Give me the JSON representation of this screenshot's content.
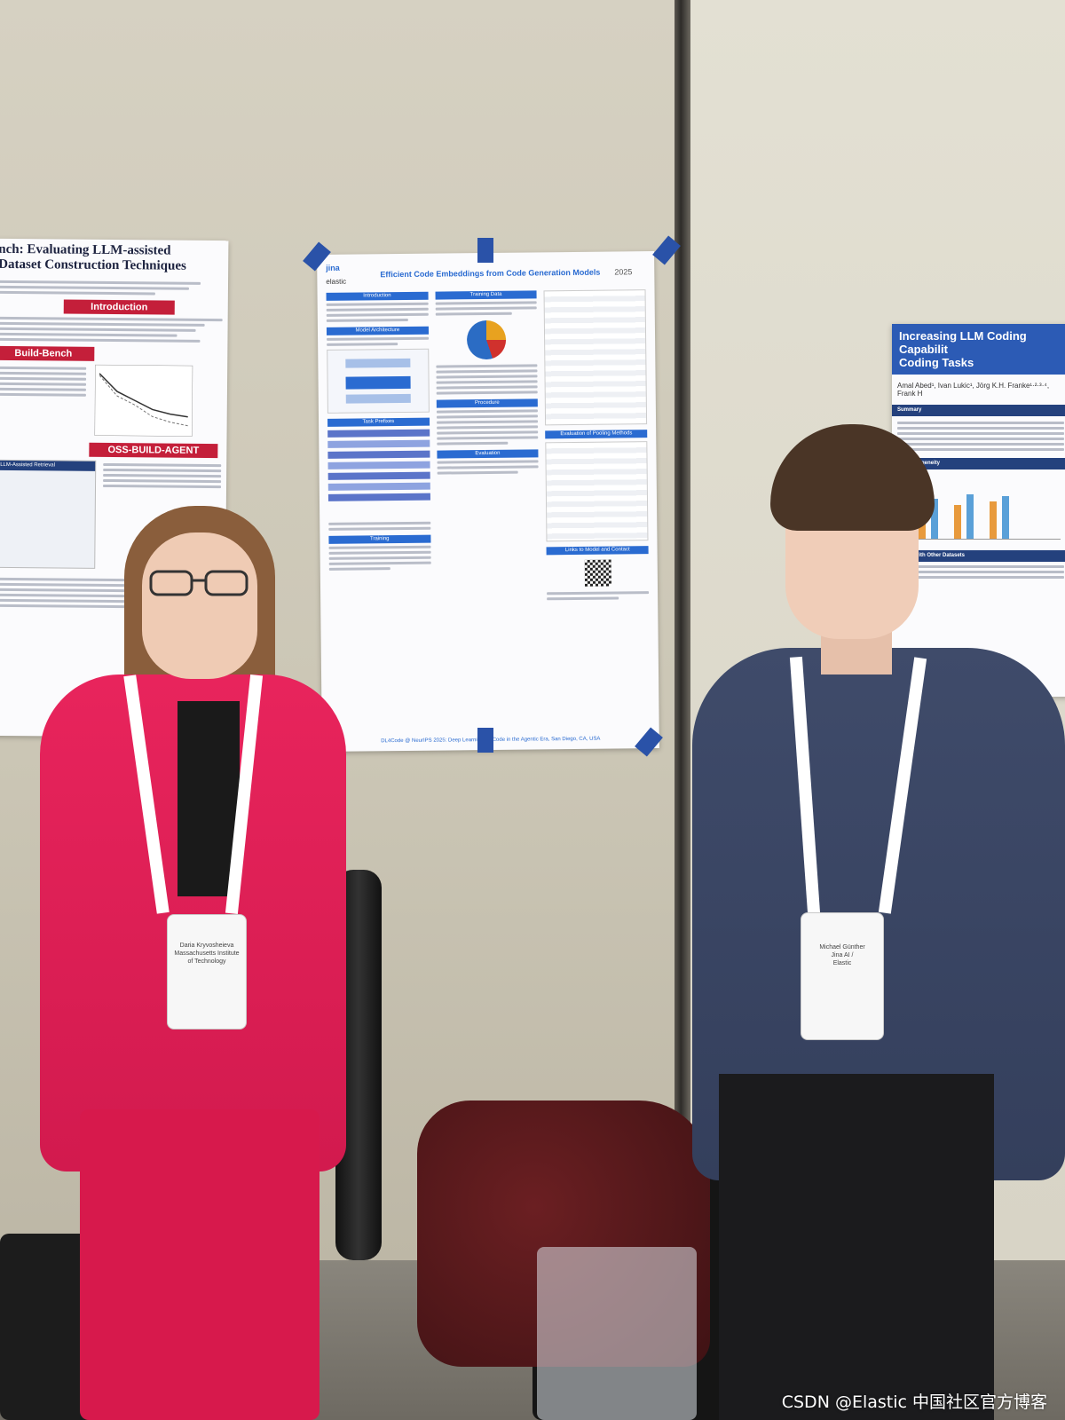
{
  "posters": {
    "left": {
      "title_line1": "nch: Evaluating LLM-assisted",
      "title_line2": "Dataset Construction Techniques",
      "section_intro": "Introduction",
      "section_build": "Build-Bench",
      "section_agent": "OSS-BUILD-AGENT",
      "section_retrieval": "LLM-Assisted Retrieval"
    },
    "center": {
      "title": "Efficient Code Embeddings from Code Generation Models",
      "logo_jina": "jina",
      "logo_elastic": "elastic",
      "year": "2025",
      "sections": [
        "Introduction",
        "Model Architecture",
        "Task Prefixes",
        "Training",
        "Training Data",
        "Procedure",
        "Evaluation",
        "Evaluation of Pooling Methods",
        "Links to Model and Contact"
      ],
      "footer": "DL4Code @ NeurIPS 2025: Deep Learning for Code in the Agentic Era, San Diego, CA, USA"
    },
    "right": {
      "title_line1": "Increasing LLM Coding Capabilit",
      "title_line2": "Coding Tasks",
      "authors": "Amal Abed¹, Ivan Lukic¹, Jörg K.H. Franke¹·²·³·⁴, Frank H",
      "section_summary": "Summary",
      "section_homogeneity": "vs. Homogeneity",
      "section_other": "arison with Other Datasets"
    }
  },
  "badges": {
    "woman": {
      "line1": "Daria Kryvosheieva",
      "line2": "Massachusetts Institute",
      "line3": "of Technology"
    },
    "man": {
      "line1": "Michael Günther",
      "line2": "Jina AI /",
      "line3": "Elastic"
    }
  },
  "watermark": "CSDN @Elastic 中国社区官方博客",
  "colors": {
    "suit": "#e8245c",
    "sweater": "#3f4b6a",
    "poster_accent": "#c41f3a",
    "tape": "#2a52a8"
  }
}
